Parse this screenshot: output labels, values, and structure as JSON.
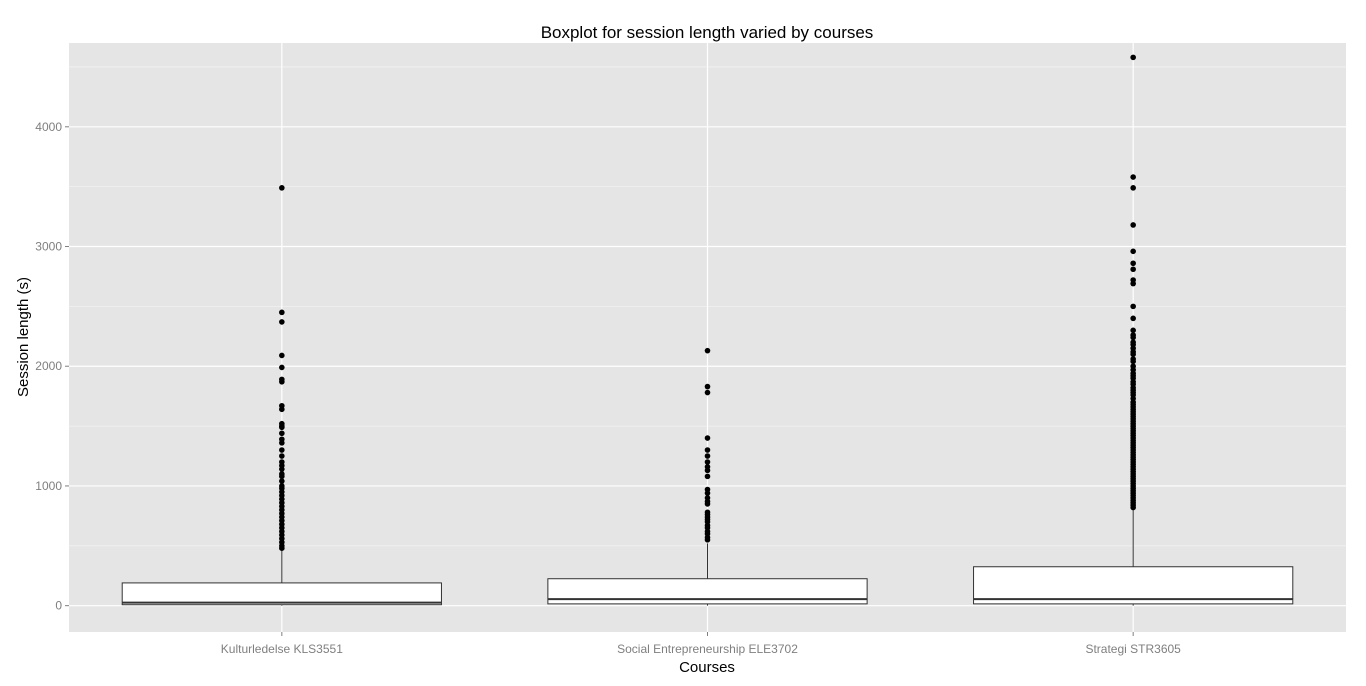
{
  "chart_data": {
    "type": "boxplot",
    "title": "Boxplot for session length varied by courses",
    "xlabel": "Courses",
    "ylabel": "Session length (s)",
    "ylim": [
      -220,
      4700
    ],
    "yticks": [
      0,
      1000,
      2000,
      3000,
      4000
    ],
    "y_tick_labels": [
      "0",
      "1000",
      "2000",
      "3000",
      "4000"
    ],
    "grid": true,
    "legend": "none",
    "colors": {
      "panel_background": "#e5e5e5",
      "grid_major": "#ffffff",
      "grid_minor": "#f2f2f2",
      "box_fill": "#ffffff",
      "box_stroke": "#333333",
      "outlier": "#000000",
      "tick_label": "#7f7f7f"
    },
    "categories": [
      "Kulturledelse KLS3551",
      "Social Entrepreneurship ELE3702",
      "Strategi STR3605"
    ],
    "boxes": [
      {
        "category": "Kulturledelse KLS3551",
        "min": 0,
        "q1": 8,
        "median": 25,
        "q3": 190,
        "max": 460,
        "outliers": [
          3490,
          2450,
          2370,
          2090,
          1990,
          1890,
          1870,
          1670,
          1640,
          1520,
          1500,
          1490,
          1440,
          1390,
          1360,
          1300,
          1250,
          1200,
          1170,
          1140,
          1100,
          1080,
          1040,
          1000,
          980,
          950,
          920,
          890,
          860,
          830,
          800,
          770,
          740,
          710,
          680,
          650,
          620,
          590,
          560,
          530,
          500,
          480
        ]
      },
      {
        "category": "Social Entrepreneurship ELE3702",
        "min": 0,
        "q1": 15,
        "median": 55,
        "q3": 225,
        "max": 520,
        "outliers": [
          2130,
          1830,
          1780,
          1400,
          1300,
          1250,
          1200,
          1160,
          1130,
          1080,
          970,
          940,
          900,
          870,
          850,
          780,
          760,
          740,
          720,
          700,
          670,
          650,
          620,
          600,
          570,
          550
        ]
      },
      {
        "category": "Strategi STR3605",
        "min": 0,
        "q1": 15,
        "median": 55,
        "q3": 325,
        "max": 800,
        "outliers": [
          4580,
          3580,
          3490,
          3180,
          2960,
          2860,
          2810,
          2720,
          2690,
          2500,
          2400,
          2300,
          2260,
          2240,
          2200,
          2180,
          2150,
          2120,
          2100,
          2060,
          2040,
          2000,
          1970,
          1940,
          1920,
          1900,
          1870,
          1850,
          1820,
          1800,
          1780,
          1760,
          1730,
          1700,
          1680,
          1660,
          1640,
          1620,
          1600,
          1580,
          1560,
          1540,
          1520,
          1500,
          1480,
          1460,
          1440,
          1420,
          1400,
          1380,
          1360,
          1340,
          1320,
          1300,
          1280,
          1260,
          1240,
          1220,
          1200,
          1180,
          1160,
          1140,
          1120,
          1100,
          1080,
          1060,
          1040,
          1020,
          1000,
          980,
          960,
          940,
          920,
          900,
          880,
          860,
          840,
          820
        ]
      }
    ]
  }
}
